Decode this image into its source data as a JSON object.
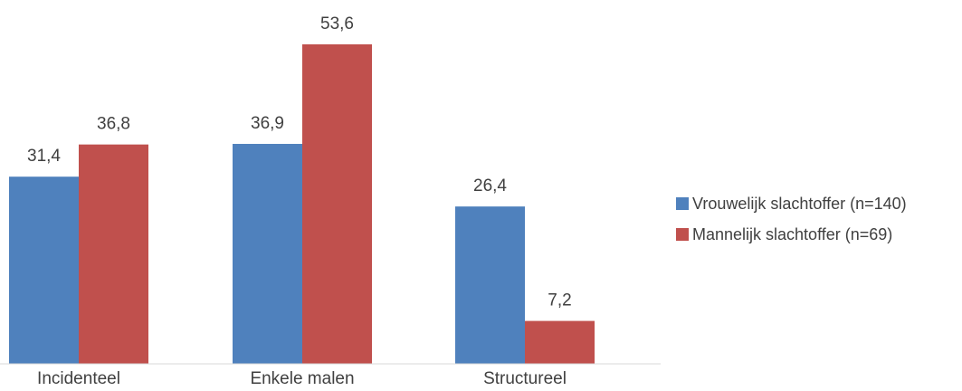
{
  "chart_data": {
    "type": "bar",
    "categories": [
      "Incidenteel",
      "Enkele malen",
      "Structureel"
    ],
    "series": [
      {
        "name": "Vrouwelijk slachtoffer (n=140)",
        "values": [
          31.4,
          36.9,
          26.4
        ],
        "labels": [
          "31,4",
          "36,9",
          "26,4"
        ],
        "color": "#4F81BD"
      },
      {
        "name": "Mannelijk slachtoffer (n=69)",
        "values": [
          36.8,
          53.6,
          7.2
        ],
        "labels": [
          "36,8",
          "53,6",
          "7,2"
        ],
        "color": "#C0504D"
      }
    ],
    "title": "",
    "xlabel": "",
    "ylabel": "",
    "ylim": [
      0,
      60
    ],
    "grid": false,
    "legend_position": "right"
  }
}
